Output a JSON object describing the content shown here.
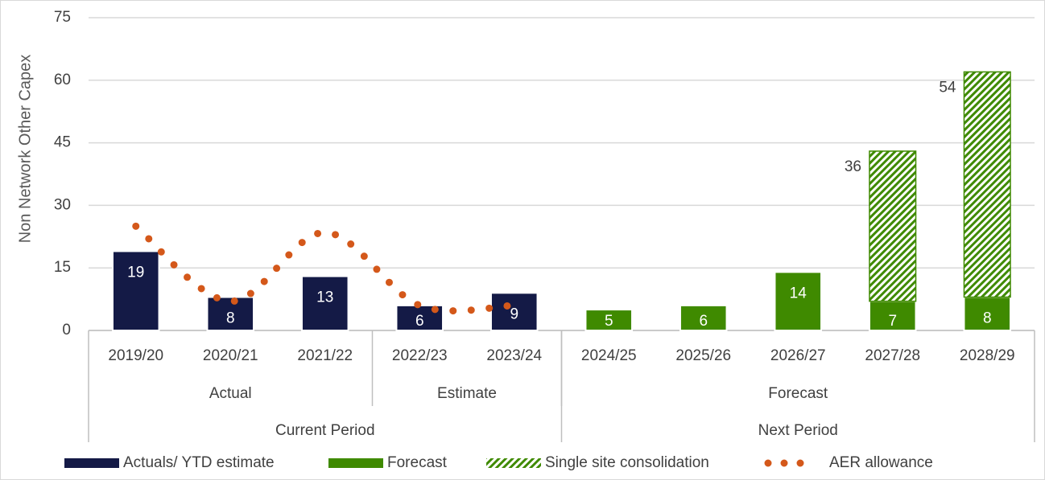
{
  "chart_data": {
    "type": "bar",
    "stacked": true,
    "y_axis_label": "Non Network Other Capex",
    "categories": [
      "2019/20",
      "2020/21",
      "2021/22",
      "2022/23",
      "2023/24",
      "2024/25",
      "2025/26",
      "2026/27",
      "2027/28",
      "2028/29"
    ],
    "groups": [
      {
        "label": "Actual",
        "count": 3
      },
      {
        "label": "Estimate",
        "count": 2
      },
      {
        "label": "Forecast",
        "count": 5
      }
    ],
    "periods": [
      {
        "label": "Current Period",
        "count": 5
      },
      {
        "label": "Next Period",
        "count": 5
      }
    ],
    "series": [
      {
        "name": "Actuals/ YTD estimate",
        "color": "#141a46",
        "type": "bar",
        "values": [
          19,
          8,
          13,
          6,
          9,
          null,
          null,
          null,
          null,
          null
        ]
      },
      {
        "name": "Forecast",
        "color": "#3f8a00",
        "type": "bar",
        "values": [
          null,
          null,
          null,
          null,
          null,
          5,
          6,
          14,
          7,
          8
        ]
      },
      {
        "name": "Single site consolidation",
        "color": "#3f8a00",
        "type": "bar",
        "hatched": true,
        "values": [
          null,
          null,
          null,
          null,
          null,
          null,
          null,
          null,
          36,
          54
        ]
      },
      {
        "name": "AER allowance",
        "color": "#d4581a",
        "type": "line",
        "dotted": true,
        "values": [
          25,
          7,
          23.5,
          6,
          6,
          null,
          null,
          null,
          null,
          null
        ]
      }
    ],
    "ylim": [
      0,
      75
    ],
    "yticks": [
      0,
      15,
      30,
      45,
      60,
      75
    ],
    "grid": true,
    "legend": "bottom"
  }
}
